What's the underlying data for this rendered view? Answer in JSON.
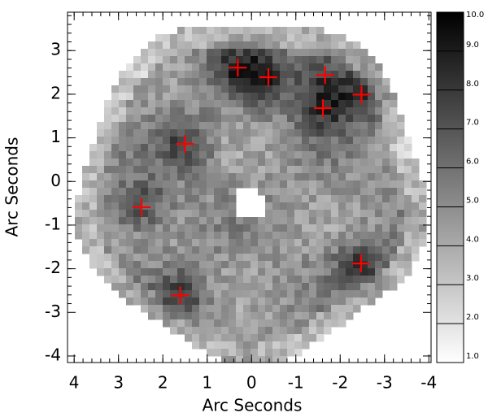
{
  "chart_data": {
    "type": "image-scatter",
    "xlabel": "Arc Seconds",
    "ylabel": "Arc Seconds",
    "xlim": [
      4.15,
      -4.05
    ],
    "ylim": [
      -4.15,
      3.88
    ],
    "xticks": [
      4,
      3,
      2,
      1,
      0,
      -1,
      -2,
      -3,
      -4
    ],
    "yticks": [
      3,
      2,
      1,
      0,
      -1,
      -2,
      -3,
      -4
    ],
    "marker_color": "#ff0000",
    "x": [
      0.31,
      -0.38,
      -1.66,
      -2.48,
      -1.61,
      1.5,
      2.48,
      -2.47,
      1.61
    ],
    "y": [
      2.61,
      2.39,
      2.44,
      1.99,
      1.68,
      0.86,
      -0.59,
      -1.88,
      -2.61
    ],
    "colorbar": {
      "lim": [
        1,
        10
      ],
      "ticks": [
        {
          "value": 10,
          "label": "10.0"
        },
        {
          "value": 9,
          "label": "9.0"
        },
        {
          "value": 8,
          "label": "8.0"
        },
        {
          "value": 7,
          "label": "7.0"
        },
        {
          "value": 6,
          "label": "6.0"
        },
        {
          "value": 5,
          "label": "5.0"
        },
        {
          "value": 4,
          "label": "4.0"
        },
        {
          "value": 3,
          "label": "3.0"
        },
        {
          "value": 2,
          "label": "2.0"
        },
        {
          "value": 1,
          "label": "1.0"
        }
      ]
    }
  }
}
